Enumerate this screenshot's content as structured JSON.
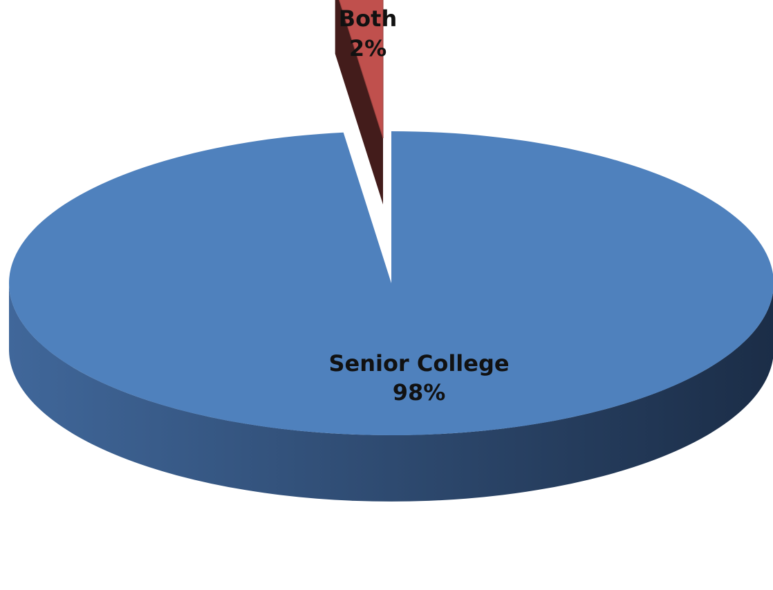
{
  "chart_data": {
    "type": "pie",
    "style": "3d-exploded",
    "slices": [
      {
        "category": "Senior College",
        "value": 98,
        "percent_label": "98%",
        "color": "#4F81BD"
      },
      {
        "category": "Both",
        "value": 2,
        "percent_label": "2%",
        "color": "#C0504D"
      }
    ],
    "labels": {
      "senior_name": "Senior College",
      "senior_pct": "98%",
      "both_name": "Both",
      "both_pct": "2%"
    }
  }
}
